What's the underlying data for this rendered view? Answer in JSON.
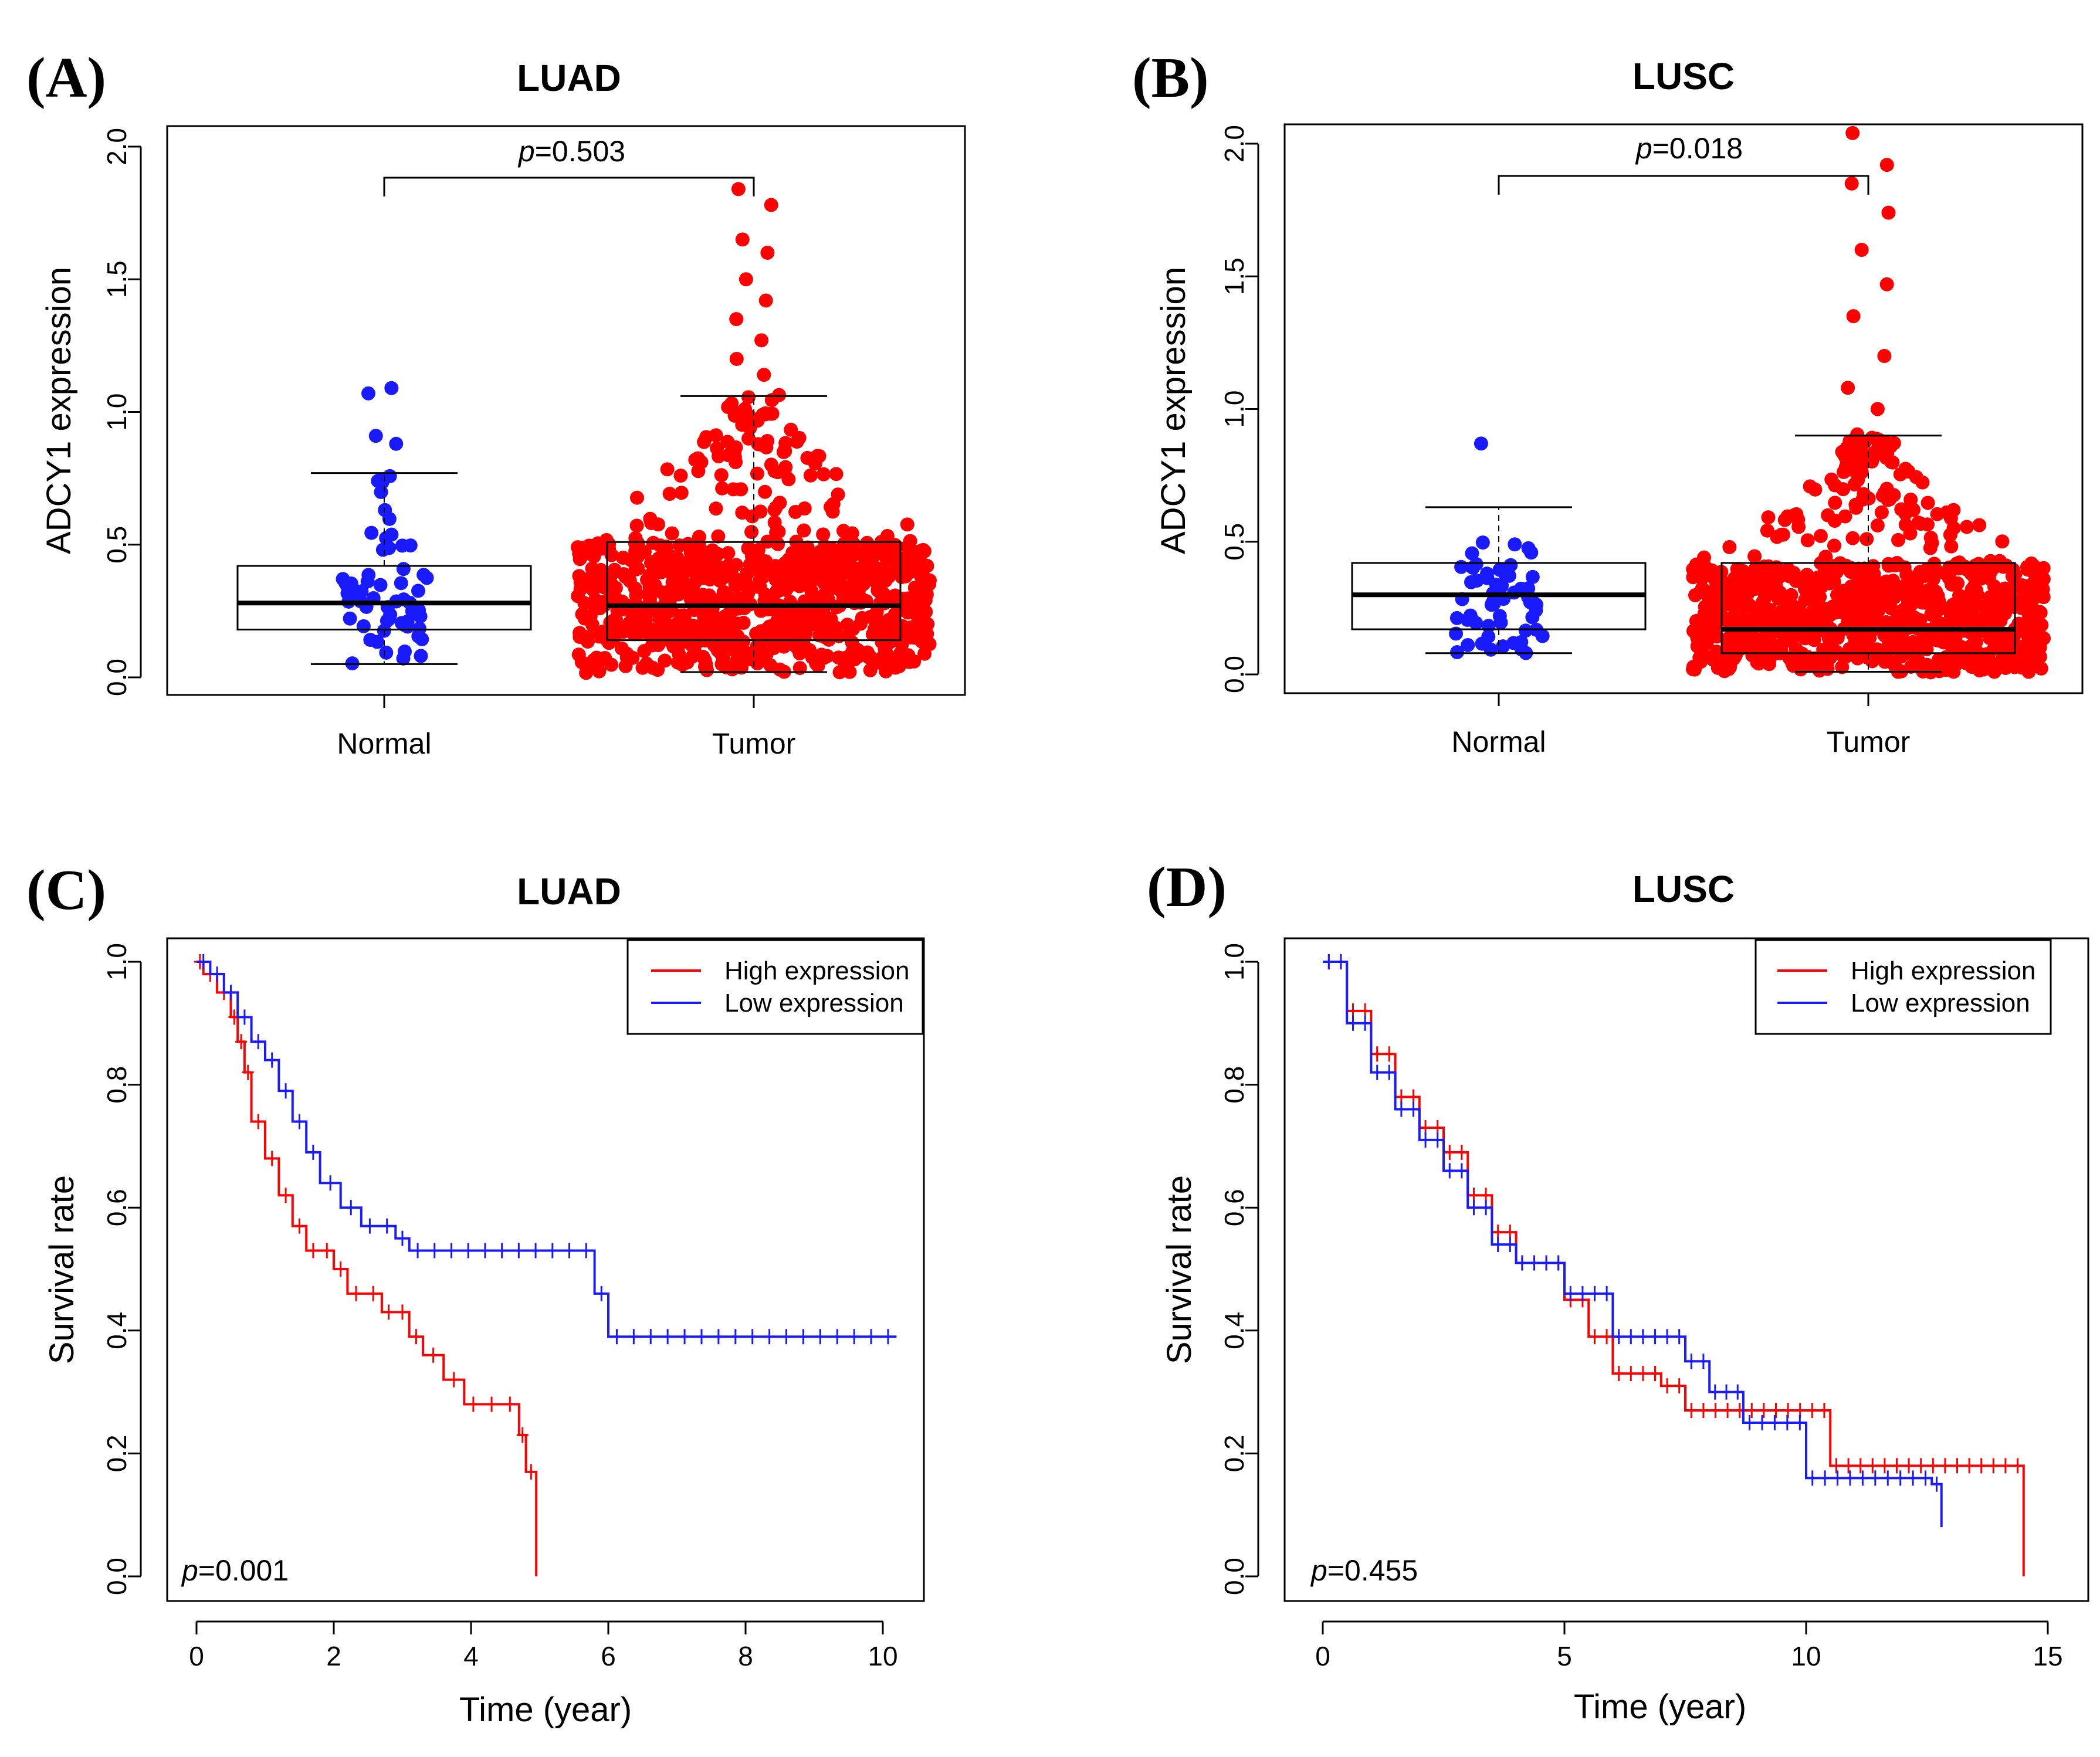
{
  "colors": {
    "normal": "#1a1aff",
    "tumor": "#ff0000",
    "high": "#ff0000",
    "low": "#1a1aff",
    "axis": "#000000"
  },
  "chart_data": [
    {
      "panel": "(A)",
      "type": "box-swarm",
      "title": "LUAD",
      "ylabel": "ADCY1 expression",
      "ylim": [
        0,
        2.05
      ],
      "yticks": [
        "0.0",
        "0.5",
        "1.0",
        "1.5",
        "2.0"
      ],
      "categories": [
        "Normal",
        "Tumor"
      ],
      "pvalue_prefix": "p",
      "pvalue_text": "=0.503",
      "boxes": [
        {
          "name": "Normal",
          "whisker_low": 0.05,
          "q1": 0.18,
          "median": 0.28,
          "q3": 0.42,
          "whisker_high": 0.77,
          "outliers": [
            0.91,
            0.88,
            1.07,
            1.09
          ]
        },
        {
          "name": "Tumor",
          "whisker_low": 0.02,
          "q1": 0.14,
          "median": 0.27,
          "q3": 0.51,
          "whisker_high": 1.06,
          "outliers": [
            1.84,
            1.78,
            1.65,
            1.6,
            1.5,
            1.42,
            1.35,
            1.27,
            1.2,
            1.14
          ]
        }
      ]
    },
    {
      "panel": "(B)",
      "type": "box-swarm",
      "title": "LUSC",
      "ylabel": "ADCY1 expression",
      "ylim": [
        0,
        2.05
      ],
      "yticks": [
        "0.0",
        "0.5",
        "1.0",
        "1.5",
        "2.0"
      ],
      "categories": [
        "Normal",
        "Tumor"
      ],
      "pvalue_prefix": "p",
      "pvalue_text": "=0.018",
      "boxes": [
        {
          "name": "Normal",
          "whisker_low": 0.08,
          "q1": 0.17,
          "median": 0.3,
          "q3": 0.42,
          "whisker_high": 0.63,
          "outliers": [
            0.87
          ]
        },
        {
          "name": "Tumor",
          "whisker_low": 0.01,
          "q1": 0.08,
          "median": 0.17,
          "q3": 0.42,
          "whisker_high": 0.9,
          "outliers": [
            2.04,
            1.92,
            1.85,
            1.74,
            1.6,
            1.47,
            1.35,
            1.2,
            1.08,
            1.0
          ]
        }
      ]
    },
    {
      "panel": "(C)",
      "type": "line",
      "title": "LUAD",
      "xlabel": "Time (year)",
      "ylabel": "Survival rate",
      "xlim": [
        0,
        10.5
      ],
      "ylim": [
        0,
        1
      ],
      "xticks": [
        "0",
        "2",
        "4",
        "6",
        "8",
        "10"
      ],
      "yticks": [
        "0.0",
        "0.2",
        "0.4",
        "0.6",
        "0.8",
        "1.0"
      ],
      "legend_position": "top-right",
      "pvalue_prefix": "p",
      "pvalue_text": "=0.001",
      "series": [
        {
          "name": "High expression",
          "color": "#ff0000",
          "x": [
            0,
            0.1,
            0.3,
            0.5,
            0.6,
            0.7,
            0.8,
            1.0,
            1.2,
            1.4,
            1.6,
            2.0,
            2.2,
            2.7,
            3.1,
            3.3,
            3.6,
            3.9,
            4.7,
            4.8,
            4.95
          ],
          "y": [
            1.0,
            0.98,
            0.95,
            0.91,
            0.87,
            0.82,
            0.74,
            0.68,
            0.62,
            0.57,
            0.53,
            0.5,
            0.46,
            0.43,
            0.39,
            0.36,
            0.32,
            0.28,
            0.23,
            0.17,
            0.0
          ]
        },
        {
          "name": "Low expression",
          "color": "#1a1aff",
          "x": [
            0,
            0.2,
            0.4,
            0.6,
            0.8,
            1.0,
            1.2,
            1.4,
            1.6,
            1.8,
            2.1,
            2.4,
            2.9,
            3.1,
            5.8,
            6.0,
            10.2
          ],
          "y": [
            1.0,
            0.98,
            0.95,
            0.91,
            0.87,
            0.84,
            0.79,
            0.74,
            0.69,
            0.64,
            0.6,
            0.57,
            0.55,
            0.53,
            0.46,
            0.39,
            0.39
          ]
        }
      ]
    },
    {
      "panel": "(D)",
      "type": "line",
      "title": "LUSC",
      "xlabel": "Time (year)",
      "ylabel": "Survival rate",
      "xlim": [
        0,
        15
      ],
      "ylim": [
        0,
        1
      ],
      "xticks": [
        "0",
        "5",
        "10",
        "15"
      ],
      "yticks": [
        "0.0",
        "0.2",
        "0.4",
        "0.6",
        "0.8",
        "1.0"
      ],
      "legend_position": "top-right",
      "pvalue_prefix": "p",
      "pvalue_text": "=0.455",
      "series": [
        {
          "name": "High expression",
          "color": "#ff0000",
          "x": [
            0,
            0.5,
            1.0,
            1.5,
            2.0,
            2.5,
            3.0,
            3.5,
            4.0,
            5.0,
            5.5,
            6.0,
            7.0,
            7.5,
            9.0,
            10.5,
            14.5
          ],
          "y": [
            1.0,
            0.92,
            0.85,
            0.78,
            0.73,
            0.69,
            0.62,
            0.56,
            0.51,
            0.45,
            0.39,
            0.33,
            0.31,
            0.27,
            0.27,
            0.18,
            0.0
          ]
        },
        {
          "name": "Low expression",
          "color": "#1a1aff",
          "x": [
            0,
            0.5,
            1.0,
            1.5,
            2.0,
            2.5,
            3.0,
            3.5,
            4.0,
            5.0,
            6.0,
            7.5,
            8.0,
            8.7,
            10.0,
            12.6,
            12.8
          ],
          "y": [
            1.0,
            0.9,
            0.82,
            0.76,
            0.71,
            0.66,
            0.6,
            0.54,
            0.51,
            0.46,
            0.39,
            0.35,
            0.3,
            0.25,
            0.16,
            0.15,
            0.08
          ]
        }
      ]
    }
  ]
}
